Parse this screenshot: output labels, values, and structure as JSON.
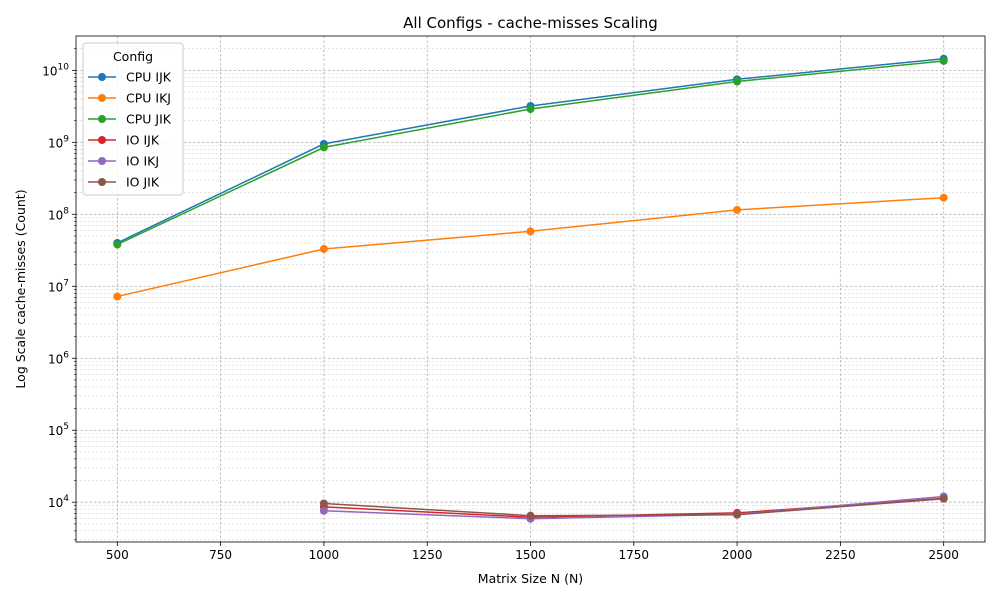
{
  "chart_data": {
    "type": "line",
    "title": "All Configs - cache-misses Scaling",
    "xlabel": "Matrix Size N (N)",
    "ylabel": "Log Scale cache-misses (Count)",
    "yscale": "log",
    "xlim": [
      400,
      2600
    ],
    "ylim": [
      2800,
      30000000000
    ],
    "x_ticks": [
      500,
      750,
      1000,
      1250,
      1500,
      1750,
      2000,
      2250,
      2500
    ],
    "y_ticks": [
      {
        "value": 10000,
        "base": "10",
        "exp": "4"
      },
      {
        "value": 100000,
        "base": "10",
        "exp": "5"
      },
      {
        "value": 1000000,
        "base": "10",
        "exp": "6"
      },
      {
        "value": 10000000,
        "base": "10",
        "exp": "7"
      },
      {
        "value": 100000000,
        "base": "10",
        "exp": "8"
      },
      {
        "value": 1000000000,
        "base": "10",
        "exp": "9"
      },
      {
        "value": 10000000000,
        "base": "10",
        "exp": "10"
      }
    ],
    "grid": true,
    "legend": {
      "title": "Config",
      "position": "top-left"
    },
    "series": [
      {
        "name": "CPU IJK",
        "color": "#1f77b4",
        "x": [
          500,
          1000,
          1500,
          2000,
          2500
        ],
        "y": [
          40000000,
          950000000,
          3200000000,
          7500000000,
          14500000000
        ]
      },
      {
        "name": "CPU IKJ",
        "color": "#ff7f0e",
        "x": [
          500,
          1000,
          1500,
          2000,
          2500
        ],
        "y": [
          7200000,
          33000000,
          58000000,
          115000000,
          170000000
        ]
      },
      {
        "name": "CPU JIK",
        "color": "#2ca02c",
        "x": [
          500,
          1000,
          1500,
          2000,
          2500
        ],
        "y": [
          38000000,
          850000000,
          2900000000,
          7000000000,
          13500000000
        ]
      },
      {
        "name": "IO IJK",
        "color": "#d62728",
        "x": [
          1000,
          1500,
          2000,
          2500
        ],
        "y": [
          8600,
          6200,
          7100,
          11300
        ]
      },
      {
        "name": "IO IKJ",
        "color": "#9467bd",
        "x": [
          1000,
          1500,
          2000,
          2500
        ],
        "y": [
          7600,
          5900,
          6800,
          12000
        ]
      },
      {
        "name": "IO JIK",
        "color": "#8c564b",
        "x": [
          1000,
          1500,
          2000,
          2500
        ],
        "y": [
          9600,
          6500,
          6700,
          11200
        ]
      }
    ]
  }
}
